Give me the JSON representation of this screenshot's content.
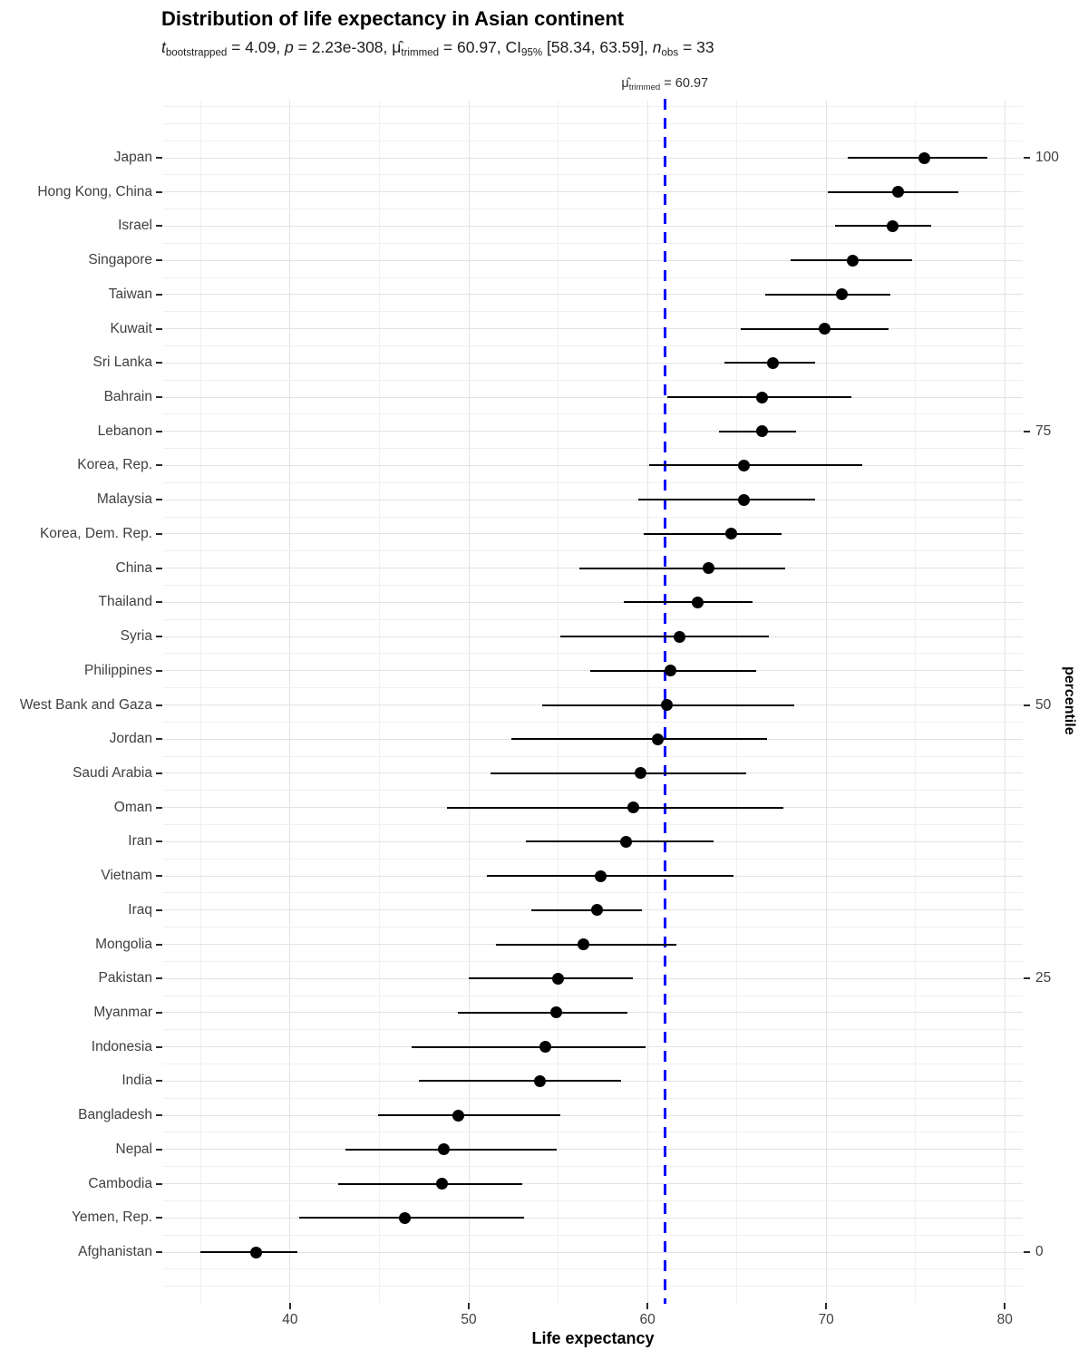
{
  "chart_data": {
    "type": "scatter",
    "title": "Distribution of life expectancy in Asian continent",
    "subtitle_segments": [
      {
        "t": "t",
        "i": true
      },
      {
        "t": "bootstrapped",
        "sub": true
      },
      {
        "t": " = 4.09, "
      },
      {
        "t": "p",
        "i": true
      },
      {
        "t": " = 2.23e-308, "
      },
      {
        "t": "μ̂"
      },
      {
        "t": "trimmed",
        "sub": true
      },
      {
        "t": " = 60.97, CI"
      },
      {
        "t": "95%",
        "sub": true
      },
      {
        "t": " [58.34, 63.59], "
      },
      {
        "t": "n",
        "i": true
      },
      {
        "t": "obs",
        "sub": true
      },
      {
        "t": " = 33"
      }
    ],
    "annotation_segments": [
      {
        "t": "μ̂"
      },
      {
        "t": "trimmed",
        "sub": true
      },
      {
        "t": " = 60.97"
      }
    ],
    "xlabel": "Life expectancy",
    "ylabel_right": "percentile",
    "x_axis": {
      "tick_labels": [
        "40",
        "50",
        "60",
        "70",
        "80"
      ],
      "ticks": [
        40,
        50,
        60,
        70,
        80
      ],
      "minor_ticks": [
        35,
        45,
        55,
        65,
        75
      ],
      "range": [
        32.9,
        81.0
      ]
    },
    "right_axis_ticks": [
      {
        "label": "100",
        "row": 0
      },
      {
        "label": "75",
        "row": 8
      },
      {
        "label": "50",
        "row": 16
      },
      {
        "label": "25",
        "row": 24
      },
      {
        "label": "0",
        "row": 32
      }
    ],
    "vline": {
      "value": 60.97
    },
    "points": [
      {
        "country": "Japan",
        "value": 75.5,
        "ci_low": 71.2,
        "ci_high": 79.0
      },
      {
        "country": "Hong Kong, China",
        "value": 74.0,
        "ci_low": 70.1,
        "ci_high": 77.4
      },
      {
        "country": "Israel",
        "value": 73.7,
        "ci_low": 70.5,
        "ci_high": 75.9
      },
      {
        "country": "Singapore",
        "value": 71.5,
        "ci_low": 68.0,
        "ci_high": 74.8
      },
      {
        "country": "Taiwan",
        "value": 70.9,
        "ci_low": 66.6,
        "ci_high": 73.6
      },
      {
        "country": "Kuwait",
        "value": 69.9,
        "ci_low": 65.2,
        "ci_high": 73.5
      },
      {
        "country": "Sri Lanka",
        "value": 67.0,
        "ci_low": 64.3,
        "ci_high": 69.4
      },
      {
        "country": "Bahrain",
        "value": 66.4,
        "ci_low": 61.1,
        "ci_high": 71.4
      },
      {
        "country": "Lebanon",
        "value": 66.4,
        "ci_low": 64.0,
        "ci_high": 68.3
      },
      {
        "country": "Korea, Rep.",
        "value": 65.4,
        "ci_low": 60.1,
        "ci_high": 72.0
      },
      {
        "country": "Malaysia",
        "value": 65.4,
        "ci_low": 59.5,
        "ci_high": 69.4
      },
      {
        "country": "Korea, Dem. Rep.",
        "value": 64.7,
        "ci_low": 59.8,
        "ci_high": 67.5
      },
      {
        "country": "China",
        "value": 63.4,
        "ci_low": 56.2,
        "ci_high": 67.7
      },
      {
        "country": "Thailand",
        "value": 62.8,
        "ci_low": 58.7,
        "ci_high": 65.9
      },
      {
        "country": "Syria",
        "value": 61.8,
        "ci_low": 55.1,
        "ci_high": 66.8
      },
      {
        "country": "Philippines",
        "value": 61.3,
        "ci_low": 56.8,
        "ci_high": 66.1
      },
      {
        "country": "West Bank and Gaza",
        "value": 61.1,
        "ci_low": 54.1,
        "ci_high": 68.2
      },
      {
        "country": "Jordan",
        "value": 60.6,
        "ci_low": 52.4,
        "ci_high": 66.7
      },
      {
        "country": "Saudi Arabia",
        "value": 59.6,
        "ci_low": 51.2,
        "ci_high": 65.5
      },
      {
        "country": "Oman",
        "value": 59.2,
        "ci_low": 48.8,
        "ci_high": 67.6
      },
      {
        "country": "Iran",
        "value": 58.8,
        "ci_low": 53.2,
        "ci_high": 63.7
      },
      {
        "country": "Vietnam",
        "value": 57.4,
        "ci_low": 51.0,
        "ci_high": 64.8
      },
      {
        "country": "Iraq",
        "value": 57.2,
        "ci_low": 53.5,
        "ci_high": 59.7
      },
      {
        "country": "Mongolia",
        "value": 56.4,
        "ci_low": 51.5,
        "ci_high": 61.6
      },
      {
        "country": "Pakistan",
        "value": 55.0,
        "ci_low": 50.0,
        "ci_high": 59.2
      },
      {
        "country": "Myanmar",
        "value": 54.9,
        "ci_low": 49.4,
        "ci_high": 58.9
      },
      {
        "country": "Indonesia",
        "value": 54.3,
        "ci_low": 46.8,
        "ci_high": 59.9
      },
      {
        "country": "India",
        "value": 54.0,
        "ci_low": 47.2,
        "ci_high": 58.5
      },
      {
        "country": "Bangladesh",
        "value": 49.4,
        "ci_low": 44.9,
        "ci_high": 55.1
      },
      {
        "country": "Nepal",
        "value": 48.6,
        "ci_low": 43.1,
        "ci_high": 54.9
      },
      {
        "country": "Cambodia",
        "value": 48.5,
        "ci_low": 42.7,
        "ci_high": 53.0
      },
      {
        "country": "Yemen, Rep.",
        "value": 46.4,
        "ci_low": 40.5,
        "ci_high": 53.1
      },
      {
        "country": "Afghanistan",
        "value": 38.1,
        "ci_low": 35.0,
        "ci_high": 40.4
      }
    ],
    "colors": {
      "vline": "#0000FF",
      "point": "#000000",
      "ci_bar": "#000000",
      "grid_major": "#E3E3E3",
      "grid_minor": "#F0F0F0",
      "tick": "#2b2b2b",
      "axis_text": "#404040"
    },
    "legend": "none",
    "grid": "on"
  }
}
